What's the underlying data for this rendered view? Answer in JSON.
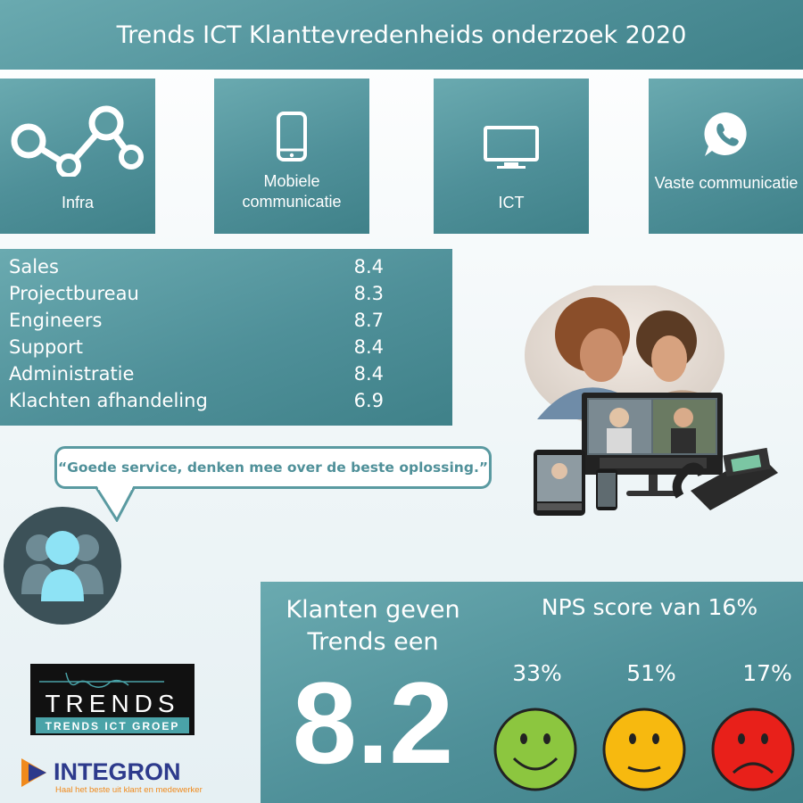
{
  "header": {
    "title": "Trends ICT Klanttevredenheids onderzoek 2020"
  },
  "categories": [
    {
      "label": "Infra",
      "icon": "network-nodes-icon"
    },
    {
      "label": "Mobiele communicatie",
      "icon": "smartphone-icon"
    },
    {
      "label": "ICT",
      "icon": "monitor-icon"
    },
    {
      "label": "Vaste communicatie",
      "icon": "whatsapp-phone-icon"
    }
  ],
  "scores": [
    {
      "label": "Sales",
      "value": "8.4"
    },
    {
      "label": "Projectbureau",
      "value": "8.3"
    },
    {
      "label": "Engineers",
      "value": "8.7"
    },
    {
      "label": "Support",
      "value": "8.4"
    },
    {
      "label": "Administratie",
      "value": "8.4"
    },
    {
      "label": "Klachten afhandeling",
      "value": "6.9"
    }
  ],
  "quote": "“Goede service, denken mee over de beste oplossing.”",
  "summary": {
    "line1": "Klanten geven",
    "line2": "Trends een",
    "score": "8.2",
    "nps_title": "NPS score van 16%",
    "promoters": "33%",
    "passives": "51%",
    "detractors": "17%"
  },
  "logos": {
    "trends_word": "TRENDS",
    "trends_sub": "TRENDS ICT GROEP",
    "integron_word": "INTEGRON",
    "integron_tagline": "Haal het beste uit klant en medewerker"
  },
  "colors": {
    "teal": "#4f9099",
    "green": "#8cc63f",
    "yellow": "#f7b90f",
    "red": "#e8201a"
  }
}
